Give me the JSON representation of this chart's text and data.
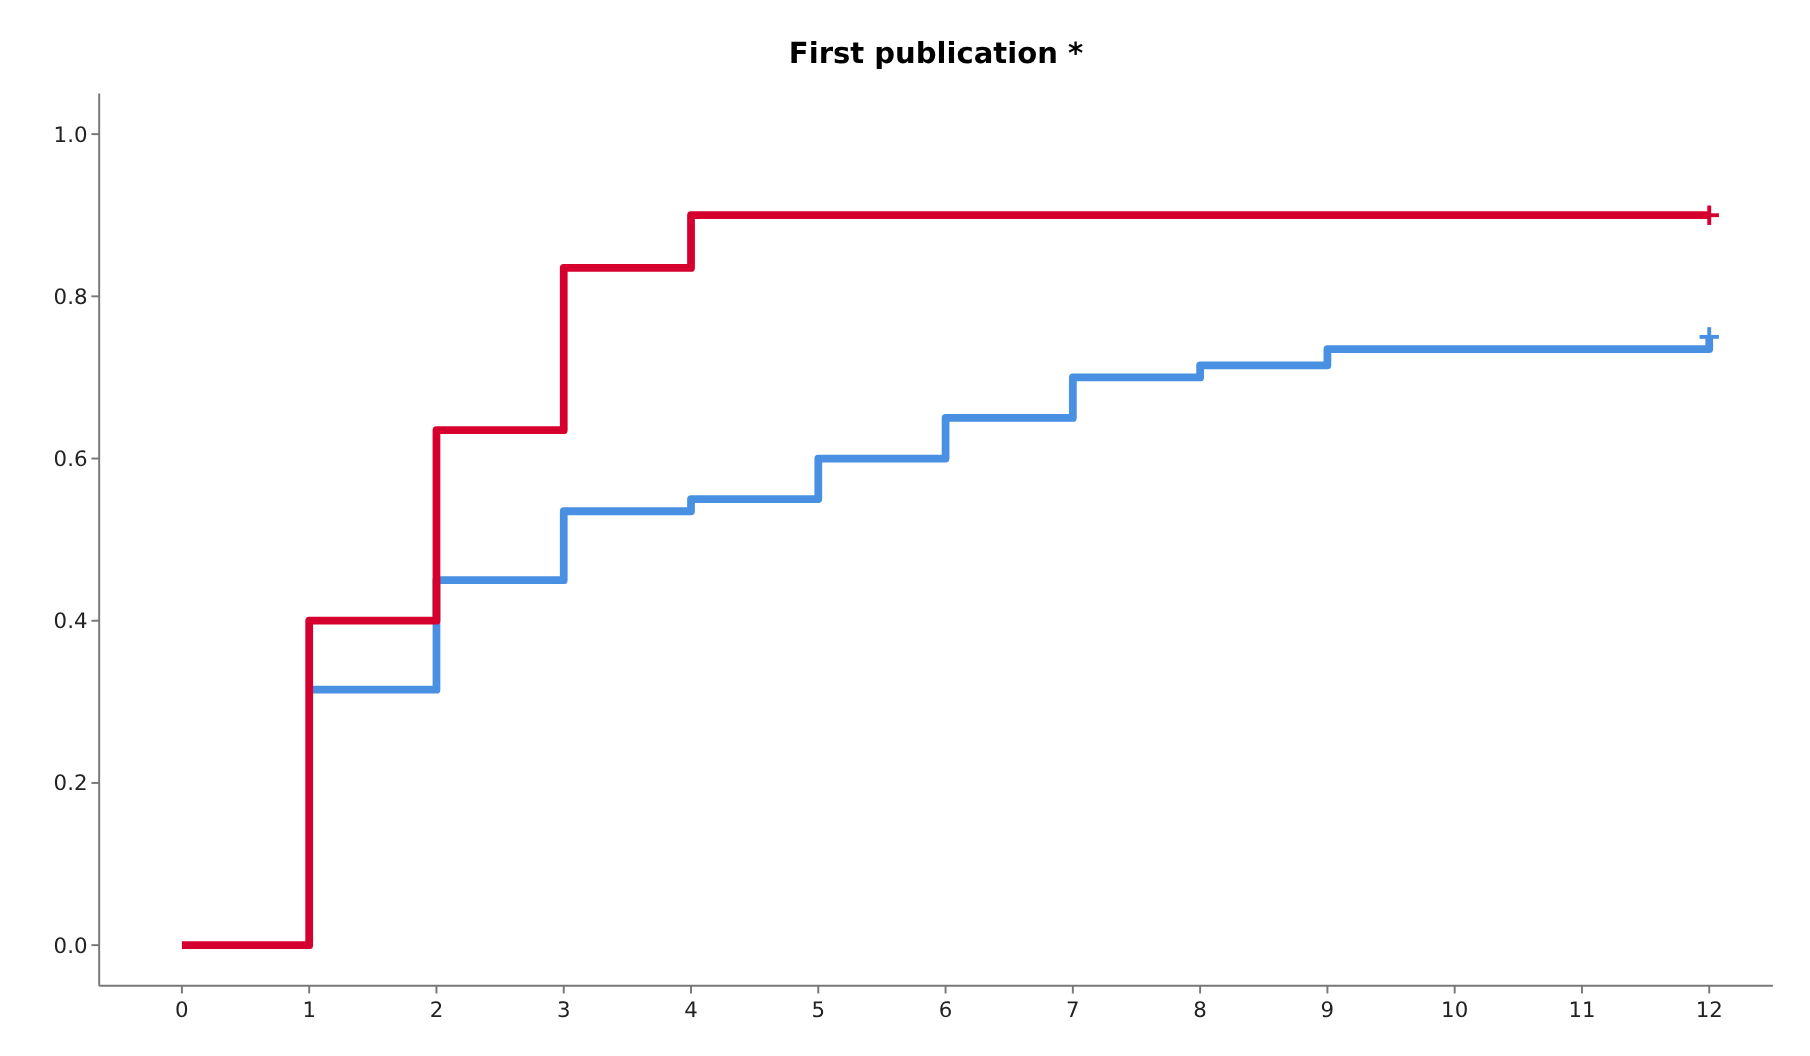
{
  "chart_data": {
    "type": "step",
    "title": "First publication *",
    "xlim": [
      -0.65,
      12.5
    ],
    "xticks": [
      0,
      1,
      2,
      3,
      4,
      5,
      6,
      7,
      8,
      9,
      10,
      11,
      12
    ],
    "ylim": [
      -0.05,
      1.05
    ],
    "yticks": [
      {
        "value": 0,
        "label": "0.0"
      },
      {
        "value": 0.2,
        "label": "0.2"
      },
      {
        "value": 0.4,
        "label": "0.4"
      },
      {
        "value": 0.6,
        "label": "0.6"
      },
      {
        "value": 0.8,
        "label": "0.8"
      },
      {
        "value": 1,
        "label": "1.0"
      }
    ],
    "grid": false,
    "series": [
      {
        "color": "#4a90e2",
        "x": [
          1,
          2,
          3,
          4,
          5,
          6,
          7,
          8,
          9,
          12,
          12
        ],
        "values": [
          0.315,
          0.45,
          0.535,
          0.55,
          0.6,
          0.65,
          0.7,
          0.715,
          0.735,
          0.735,
          0.75
        ]
      },
      {
        "color": "#d6002e",
        "x": [
          0,
          1,
          2,
          3,
          4,
          12
        ],
        "values": [
          0,
          0.4,
          0.635,
          0.835,
          0.9,
          0.9
        ]
      }
    ]
  }
}
